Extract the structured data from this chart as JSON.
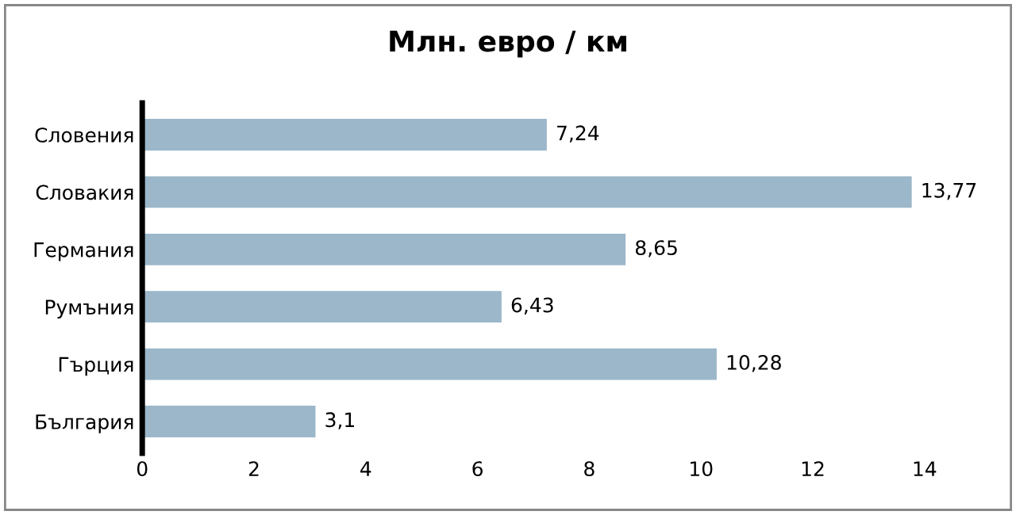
{
  "chart_data": {
    "type": "bar",
    "orientation": "horizontal",
    "title": "Млн. евро / км",
    "categories": [
      "Словения",
      "Словакия",
      "Германия",
      "Румъния",
      "Гърция",
      "България"
    ],
    "values": [
      7.24,
      13.77,
      8.65,
      6.43,
      10.28,
      3.1
    ],
    "value_labels": [
      "7,24",
      "13,77",
      "8,65",
      "6,43",
      "10,28",
      "3,1"
    ],
    "color": "#9bb7c9",
    "xlim": [
      0,
      14
    ],
    "xticks": [
      0,
      2,
      4,
      6,
      8,
      10,
      12,
      14
    ],
    "grid": false,
    "legend": false
  }
}
